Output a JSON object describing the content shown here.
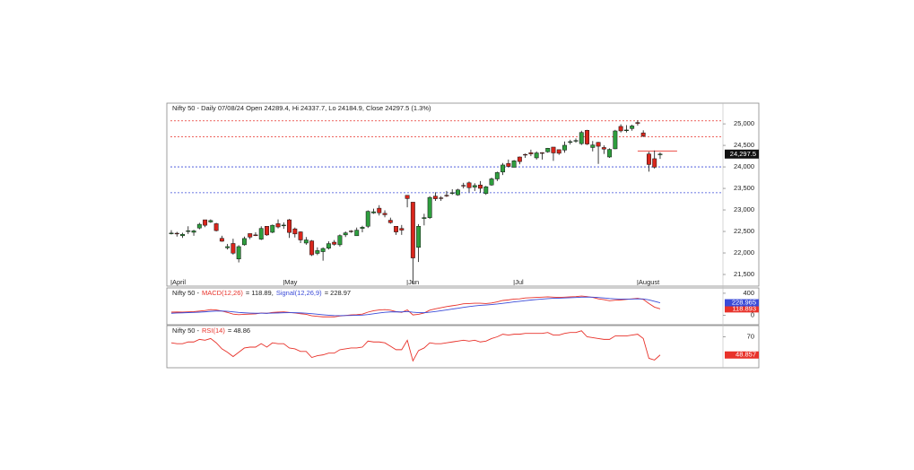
{
  "chart_data": [
    {
      "type": "candlestick",
      "title": "Nifty 50 - Daily 07/08/24 Open 24289.4, Hi 24337.7, Lo 24184.9, Close 24297.5 (1.3%)",
      "categories": [
        "April",
        null,
        null,
        null,
        null,
        null,
        null,
        null,
        null,
        null,
        null,
        null,
        null,
        null,
        null,
        null,
        null,
        null,
        null,
        null,
        "May",
        null,
        null,
        null,
        null,
        null,
        null,
        null,
        null,
        null,
        null,
        null,
        null,
        null,
        null,
        null,
        null,
        null,
        null,
        null,
        null,
        null,
        "Jun",
        null,
        null,
        null,
        null,
        null,
        null,
        null,
        null,
        null,
        null,
        null,
        null,
        null,
        null,
        null,
        null,
        null,
        null,
        "Jul",
        null,
        null,
        null,
        null,
        null,
        null,
        null,
        null,
        null,
        null,
        null,
        null,
        null,
        null,
        null,
        null,
        null,
        null,
        null,
        null,
        null,
        "August",
        null,
        null,
        null,
        null
      ],
      "open": [
        22455,
        22458,
        22400,
        22500,
        22480,
        22580,
        22770,
        22720,
        22680,
        22340,
        22120,
        22220,
        21860,
        22190,
        22450,
        22420,
        22320,
        22620,
        22480,
        22680,
        22630,
        22770,
        22560,
        22490,
        22230,
        22280,
        21990,
        22030,
        22110,
        22250,
        22190,
        22420,
        22510,
        22400,
        22570,
        22620,
        22930,
        23040,
        22920,
        22760,
        22620,
        22570,
        23340,
        23180,
        22130,
        22800,
        22820,
        23320,
        23280,
        23340,
        23390,
        23350,
        23570,
        23630,
        23530,
        23580,
        23380,
        23580,
        23720,
        23880,
        24080,
        23990,
        24230,
        24290,
        24330,
        24210,
        24330,
        24350,
        24460,
        24400,
        24390,
        24570,
        24610,
        24540,
        24850,
        24450,
        24570,
        24450,
        24230,
        24420,
        24940,
        24840,
        24890,
        25030,
        24790,
        24300,
        24190,
        24289.4
      ],
      "high": [
        22530,
        22490,
        22470,
        22620,
        22540,
        22700,
        22770,
        22780,
        22700,
        22400,
        22210,
        22330,
        22180,
        22380,
        22450,
        22480,
        22620,
        22620,
        22660,
        22780,
        22710,
        22790,
        22590,
        22500,
        22370,
        22300,
        22130,
        22130,
        22270,
        22300,
        22430,
        22500,
        22530,
        22590,
        22630,
        22990,
        23030,
        23110,
        22990,
        22820,
        22620,
        22650,
        23340,
        23180,
        22670,
        22910,
        23320,
        23410,
        23320,
        23440,
        23480,
        23490,
        23630,
        23660,
        23620,
        23670,
        23560,
        23750,
        23890,
        24090,
        24170,
        24160,
        24240,
        24310,
        24400,
        24360,
        24340,
        24440,
        24460,
        24400,
        24590,
        24630,
        24660,
        24840,
        24860,
        24600,
        24580,
        24500,
        24430,
        24860,
        24990,
        24970,
        24980,
        25080,
        24850,
        24350,
        24380,
        24337.7
      ],
      "low": [
        22430,
        22380,
        22350,
        22440,
        22400,
        22550,
        22600,
        22700,
        22500,
        22260,
        22080,
        21960,
        21780,
        22170,
        22320,
        22390,
        22300,
        22400,
        22460,
        22570,
        22560,
        22350,
        22360,
        22230,
        22190,
        21930,
        21950,
        21820,
        22080,
        22170,
        22150,
        22370,
        22470,
        22400,
        22480,
        22580,
        22910,
        22870,
        22830,
        22680,
        22420,
        22420,
        23060,
        21280,
        21790,
        22640,
        22790,
        23210,
        23210,
        23300,
        23350,
        23330,
        23500,
        23410,
        23440,
        23400,
        23350,
        23560,
        23670,
        23810,
        23990,
        23990,
        24060,
        24210,
        24250,
        24170,
        24170,
        24330,
        24140,
        24280,
        24330,
        24520,
        24560,
        24510,
        24510,
        24360,
        24070,
        24300,
        24210,
        24410,
        24800,
        24800,
        24840,
        24960,
        24690,
        23890,
        23960,
        24184.9
      ],
      "close": [
        22462,
        22453,
        22434,
        22515,
        22513,
        22666,
        22643,
        22753,
        22519,
        22272,
        22147,
        21995,
        22147,
        22336,
        22368,
        22402,
        22570,
        22419,
        22643,
        22604,
        22648,
        22476,
        22442,
        22302,
        22302,
        21957,
        22055,
        22104,
        22217,
        22200,
        22403,
        22466,
        22502,
        22529,
        22597,
        22967,
        22957,
        22932,
        22888,
        22704,
        22488,
        22530,
        23263,
        21884,
        22620,
        22821,
        23290,
        23259,
        23264,
        23323,
        23399,
        23465,
        23557,
        23516,
        23567,
        23501,
        23538,
        23721,
        23868,
        24044,
        24010,
        24141,
        24123,
        24286,
        24302,
        24324,
        24320,
        24433,
        24324,
        24316,
        24502,
        24586,
        24613,
        24800,
        24531,
        24509,
        24479,
        24413,
        24406,
        24835,
        24836,
        24857,
        24951,
        25010,
        24718,
        24055,
        23993,
        24297.5
      ],
      "last_label": "24,297.5",
      "up_color": "#2e9e3e",
      "down_color": "#d9261c",
      "ylim": [
        21250,
        25460
      ],
      "yticks": [
        {
          "value": 21500,
          "label": "21,500"
        },
        {
          "value": 22000,
          "label": "22,000"
        },
        {
          "value": 22500,
          "label": "22,500"
        },
        {
          "value": 23000,
          "label": "23,000"
        },
        {
          "value": 23500,
          "label": "23,500"
        },
        {
          "value": 24000,
          "label": "24,000"
        },
        {
          "value": 24500,
          "label": "24,500"
        },
        {
          "value": 25000,
          "label": "25,000"
        }
      ],
      "levels": [
        {
          "value": 25070,
          "color": "#e8322a"
        },
        {
          "value": 24700,
          "color": "#e8322a"
        },
        {
          "value": 24000,
          "color": "#3b4bd8"
        },
        {
          "value": 23400,
          "color": "#3b4bd8"
        },
        {
          "value": 24370,
          "color": "#e8322a",
          "start": 83
        }
      ]
    },
    {
      "type": "line",
      "title": "Nifty 50 -",
      "series": [
        {
          "name": "MACD(12,26)",
          "legend_value": "= 118.89,",
          "color": "#e8322a",
          "last_label": "118.893",
          "values": [
            60,
            62,
            60,
            65,
            68,
            80,
            90,
            105,
            100,
            80,
            55,
            25,
            15,
            20,
            25,
            28,
            45,
            38,
            55,
            60,
            65,
            55,
            45,
            30,
            20,
            -5,
            -15,
            -25,
            -25,
            -25,
            -10,
            0,
            10,
            15,
            25,
            60,
            85,
            100,
            105,
            95,
            70,
            55,
            100,
            10,
            20,
            45,
            95,
            120,
            140,
            160,
            175,
            190,
            210,
            215,
            220,
            220,
            215,
            225,
            245,
            270,
            280,
            295,
            300,
            315,
            320,
            325,
            330,
            335,
            330,
            325,
            330,
            335,
            340,
            350,
            340,
            325,
            300,
            285,
            265,
            275,
            280,
            290,
            300,
            310,
            290,
            215,
            150,
            118.893
          ]
        },
        {
          "name": "Signal(12,26,9)",
          "legend_value": "= 228.97",
          "color": "#3b4bd8",
          "last_label": "228.965",
          "values": [
            40,
            45,
            48,
            52,
            55,
            60,
            66,
            74,
            80,
            80,
            75,
            65,
            55,
            48,
            43,
            40,
            41,
            40,
            43,
            46,
            50,
            51,
            50,
            46,
            41,
            32,
            23,
            13,
            5,
            -1,
            -3,
            -2,
            0,
            3,
            7,
            17,
            31,
            45,
            57,
            64,
            66,
            64,
            71,
            59,
            51,
            50,
            59,
            71,
            85,
            100,
            115,
            130,
            146,
            160,
            172,
            182,
            188,
            196,
            206,
            219,
            231,
            244,
            255,
            267,
            278,
            287,
            296,
            304,
            309,
            312,
            316,
            320,
            324,
            329,
            331,
            330,
            324,
            316,
            306,
            300,
            296,
            295,
            296,
            299,
            297,
            281,
            255,
            228.965
          ]
        }
      ],
      "ylim": [
        -150,
        480
      ],
      "yticks": [
        0,
        400
      ]
    },
    {
      "type": "line",
      "title": "Nifty 50 -",
      "series": [
        {
          "name": "RSI(14)",
          "legend_value": "= 48.86",
          "color": "#e8322a",
          "last_label": "48.857",
          "values": [
            63,
            62,
            62,
            64,
            64,
            67,
            66,
            68,
            63,
            56,
            52,
            47,
            52,
            57,
            58,
            58,
            62,
            58,
            63,
            62,
            62,
            57,
            56,
            53,
            53,
            46,
            48,
            49,
            51,
            51,
            55,
            56,
            57,
            57,
            58,
            65,
            64,
            64,
            63,
            59,
            55,
            55,
            66,
            42,
            54,
            57,
            63,
            62,
            62,
            63,
            64,
            65,
            66,
            65,
            66,
            64,
            65,
            68,
            70,
            73,
            72,
            73,
            73,
            74,
            74,
            74,
            74,
            75,
            72,
            72,
            74,
            75,
            75,
            77,
            70,
            69,
            68,
            67,
            67,
            71,
            71,
            71,
            72,
            73,
            68,
            45,
            43,
            48.857
          ]
        }
      ],
      "ylim": [
        34,
        82
      ],
      "yticks": [
        70
      ]
    }
  ]
}
